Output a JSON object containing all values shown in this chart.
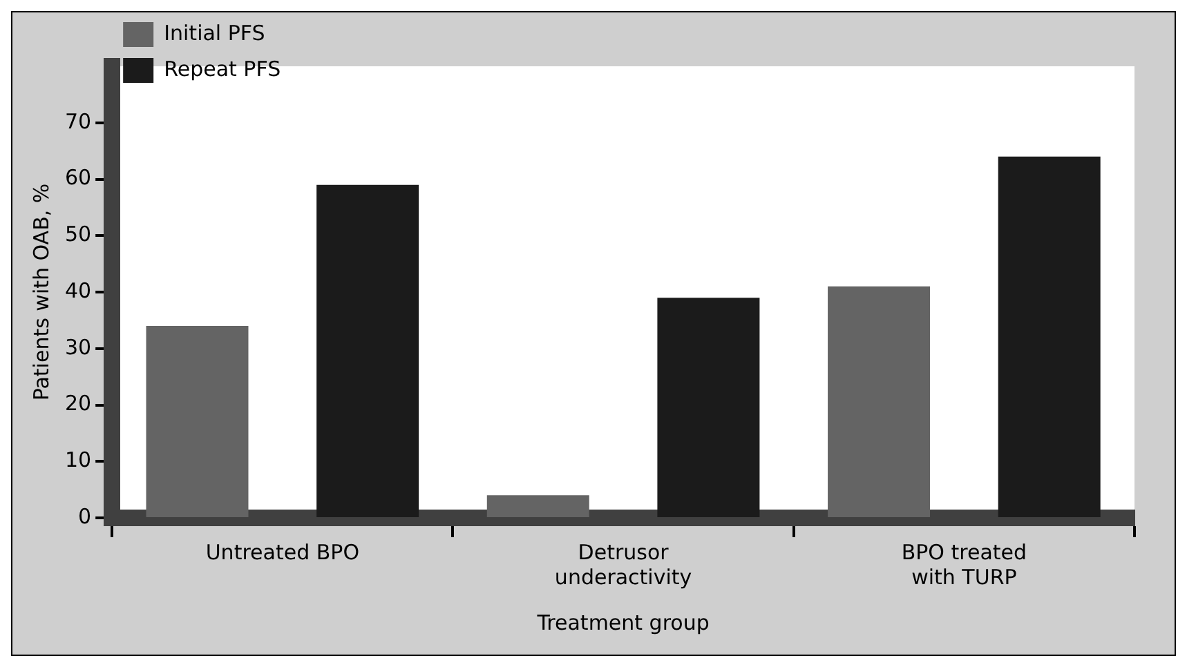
{
  "chart_data": {
    "type": "bar",
    "xlabel": "Treatment group",
    "ylabel": "Patients with OAB, %",
    "categories": [
      "Untreated BPO",
      "Detrusor underactivity",
      "BPO treated with TURP"
    ],
    "series": [
      {
        "name": "Initial PFS",
        "color": "#646464",
        "values": [
          34,
          4,
          41
        ]
      },
      {
        "name": "Repeat PFS",
        "color": "#1b1b1b",
        "values": [
          59,
          39,
          64
        ]
      }
    ],
    "ylim": [
      0,
      80
    ],
    "yticks": [
      0,
      10,
      20,
      30,
      40,
      50,
      60,
      70
    ],
    "grid": false,
    "legend": "top left"
  }
}
